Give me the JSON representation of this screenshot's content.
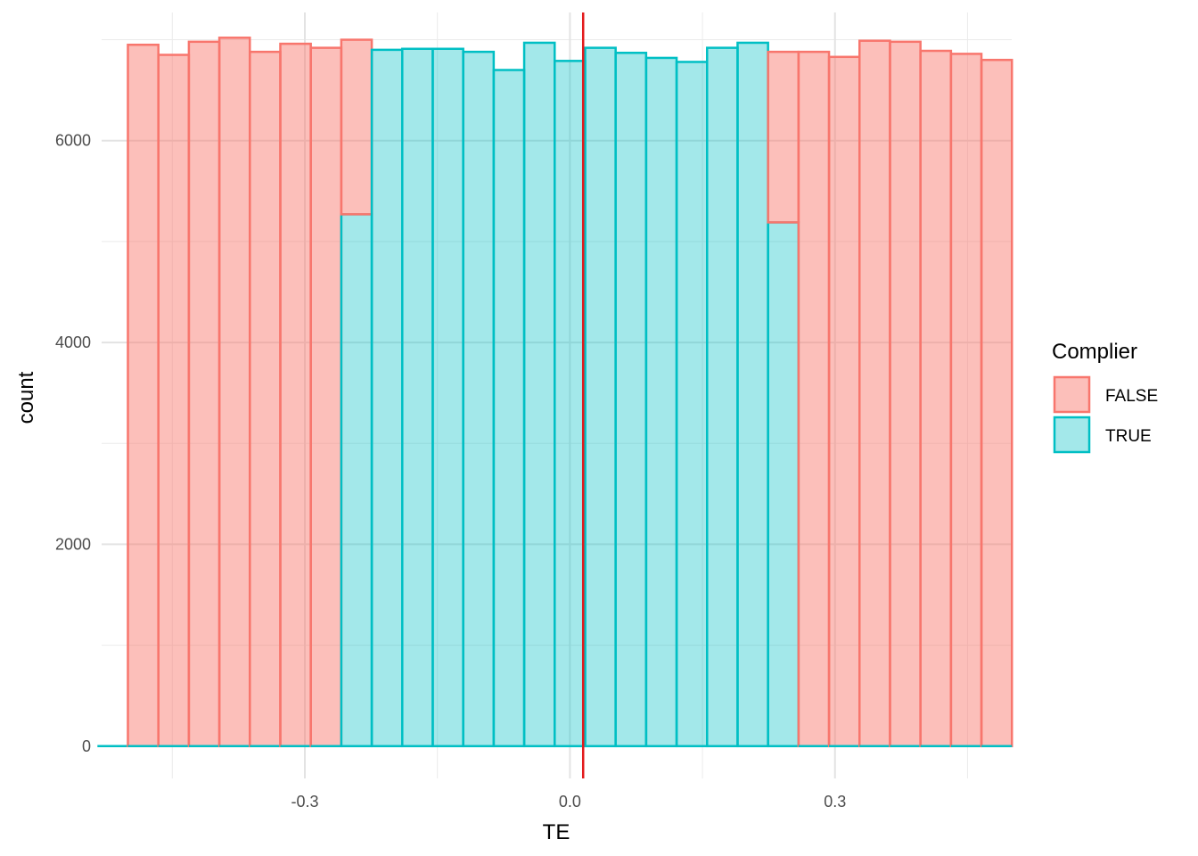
{
  "chart_data": {
    "type": "bar",
    "subtype": "stacked-histogram",
    "xlabel": "TE",
    "ylabel": "count",
    "xlim": [
      -0.53,
      0.5
    ],
    "ylim": [
      -320,
      7270
    ],
    "x_ticks": [
      -0.3,
      0.0,
      0.3
    ],
    "x_tick_labels": [
      "-0.3",
      "0.0",
      "0.3"
    ],
    "y_ticks": [
      0,
      2000,
      4000,
      6000
    ],
    "y_tick_labels": [
      "0",
      "2000",
      "4000",
      "6000"
    ],
    "grid": true,
    "bin_width": 0.0345,
    "vline": {
      "x": 0.015,
      "color": "#e31a1c"
    },
    "legend": {
      "title": "Complier",
      "position": "right",
      "items": [
        {
          "label": "FALSE",
          "fill": "#f8766d",
          "stroke": "#f8766d"
        },
        {
          "label": "TRUE",
          "fill": "#00bfc4",
          "stroke": "#00bfc4"
        }
      ]
    },
    "bins": [
      -0.5175,
      -0.483,
      -0.4485,
      -0.414,
      -0.3795,
      -0.345,
      -0.3105,
      -0.276,
      -0.2415,
      -0.207,
      -0.1725,
      -0.138,
      -0.1035,
      -0.069,
      -0.0345,
      0.0,
      0.0345,
      0.069,
      0.1035,
      0.138,
      0.1725,
      0.207,
      0.2415,
      0.276,
      0.3105,
      0.345,
      0.3795,
      0.414,
      0.4485,
      0.483
    ],
    "series": [
      {
        "name": "FALSE",
        "values": [
          0,
          6950,
          6850,
          6980,
          7020,
          6880,
          6960,
          6920,
          1730,
          0,
          0,
          0,
          0,
          0,
          0,
          0,
          0,
          0,
          0,
          0,
          0,
          0,
          1690,
          6880,
          6830,
          6990,
          6980,
          6890,
          6860,
          6800
        ]
      },
      {
        "name": "TRUE",
        "values": [
          0,
          0,
          0,
          0,
          0,
          0,
          0,
          0,
          5270,
          6900,
          6910,
          6910,
          6880,
          6700,
          6970,
          6790,
          6920,
          6870,
          6820,
          6780,
          6920,
          6970,
          5190,
          0,
          0,
          0,
          0,
          0,
          0,
          0
        ]
      }
    ]
  }
}
